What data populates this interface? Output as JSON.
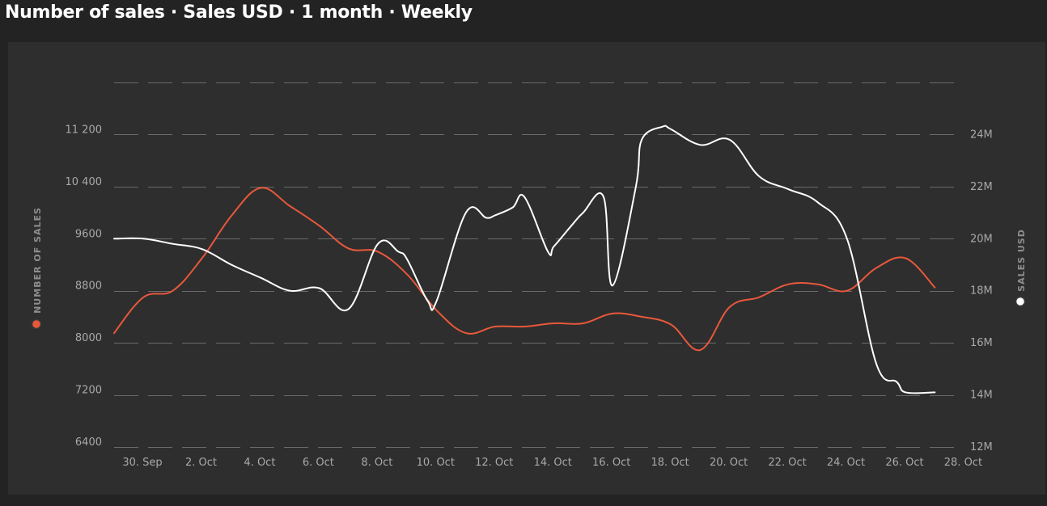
{
  "title": "Number of sales · Sales USD · 1 month · Weekly",
  "chart_data": {
    "type": "line",
    "title": "Number of sales · Sales USD · 1 month · Weekly",
    "x_tick_labels": [
      "30. Sep",
      "2. Oct",
      "4. Oct",
      "6. Oct",
      "8. Oct",
      "10. Oct",
      "12. Oct",
      "14. Oct",
      "16. Oct",
      "18. Oct",
      "20. Oct",
      "22. Oct",
      "24. Oct",
      "26. Oct",
      "28. Oct"
    ],
    "y_left": {
      "label": "NUMBER OF SALES",
      "ticks": [
        6400,
        7200,
        8000,
        8800,
        9600,
        10400,
        11200
      ],
      "tick_labels": [
        "6400",
        "7200",
        "8000",
        "8800",
        "9600",
        "10 400",
        "11 200"
      ],
      "range": [
        6400,
        12000
      ]
    },
    "y_right": {
      "label": "SALES USD",
      "ticks": [
        12,
        14,
        16,
        18,
        20,
        22,
        24
      ],
      "tick_labels": [
        "12M",
        "14M",
        "16M",
        "18M",
        "20M",
        "22M",
        "24M"
      ],
      "range": [
        12,
        26
      ]
    },
    "grid": true,
    "series": [
      {
        "name": "NUMBER OF SALES",
        "axis": "left",
        "color": "#e8583b",
        "x": [
          0,
          1,
          2,
          3,
          4,
          5,
          6,
          7,
          8,
          9,
          10,
          11,
          12,
          13,
          14,
          15,
          16,
          17,
          18,
          19,
          20,
          21,
          22,
          23,
          24,
          25,
          26,
          27,
          28
        ],
        "values": [
          8150,
          8700,
          8800,
          9300,
          9950,
          10380,
          10100,
          9800,
          9450,
          9400,
          9050,
          8500,
          8150,
          8250,
          8250,
          8300,
          8300,
          8450,
          8400,
          8280,
          7890,
          8550,
          8700,
          8900,
          8900,
          8800,
          9150,
          9300,
          8850
        ]
      },
      {
        "name": "SALES USD",
        "axis": "right",
        "color": "#ffffff",
        "x": [
          0,
          1,
          2,
          3,
          4,
          5,
          6,
          7,
          8,
          9,
          9.7,
          10,
          10.7,
          11,
          12,
          12.7,
          13,
          13.6,
          14,
          14.8,
          15,
          15.6,
          16,
          16.7,
          17,
          17.8,
          18,
          18.7,
          19,
          20,
          21,
          22,
          23,
          24,
          25,
          26,
          26.7,
          27,
          28
        ],
        "values": [
          20.0,
          20.0,
          19.8,
          19.6,
          19.0,
          18.5,
          18.0,
          18.1,
          17.3,
          19.8,
          19.5,
          19.2,
          17.6,
          17.6,
          21.0,
          20.8,
          20.9,
          21.2,
          21.6,
          19.5,
          19.7,
          20.5,
          21.0,
          21.6,
          18.2,
          22.0,
          23.8,
          24.3,
          24.2,
          23.6,
          23.8,
          22.4,
          21.9,
          21.4,
          20.0,
          15.2,
          14.5,
          14.1,
          14.1
        ]
      }
    ]
  }
}
